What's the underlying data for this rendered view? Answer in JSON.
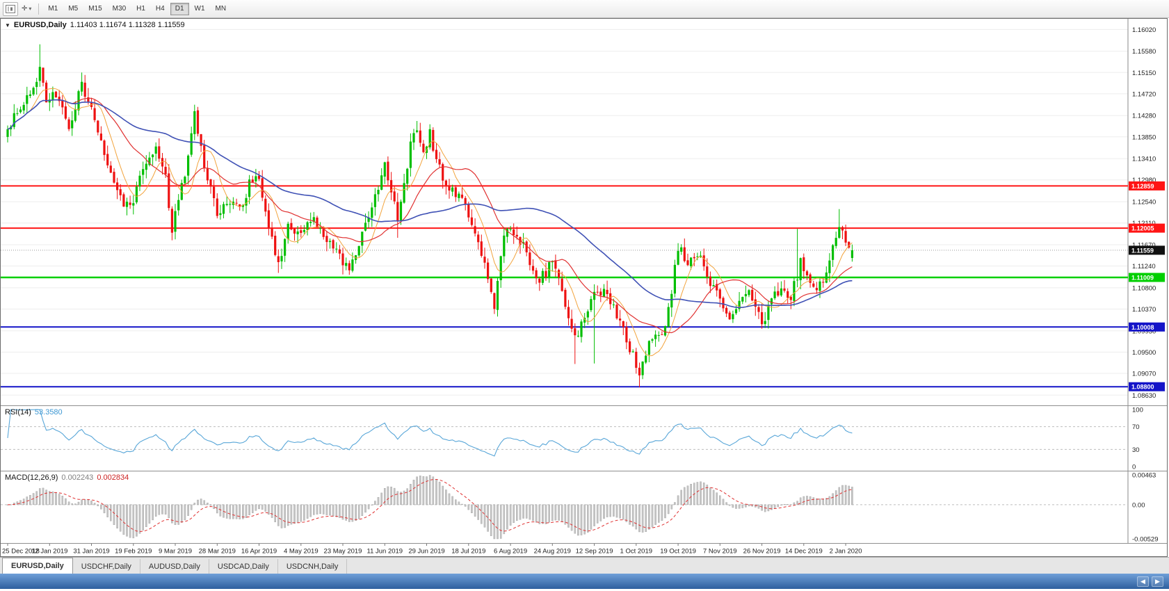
{
  "toolbar": {
    "timeframes": [
      "M1",
      "M5",
      "M15",
      "M30",
      "H1",
      "H4",
      "D1",
      "W1",
      "MN"
    ],
    "active_timeframe": "D1"
  },
  "chart_header": {
    "marker": "▼",
    "symbol": "EURUSD,Daily",
    "ohlc_text": "1.11403 1.11674 1.11328 1.11559"
  },
  "main_chart": {
    "y_ticks": [
      "1.16020",
      "1.15580",
      "1.15150",
      "1.14720",
      "1.14280",
      "1.13850",
      "1.13410",
      "1.12980",
      "1.12540",
      "1.12110",
      "1.11670",
      "1.11240",
      "1.10800",
      "1.10370",
      "1.09930",
      "1.09500",
      "1.09070",
      "1.08630"
    ],
    "hlines": [
      {
        "price": 1.12859,
        "label": "1.12859",
        "color": "#ff1414",
        "width": 2
      },
      {
        "price": 1.12005,
        "label": "1.12005",
        "color": "#ff1414",
        "width": 2
      },
      {
        "price": 1.11009,
        "label": "1.11009",
        "color": "#00cf00",
        "width": 2.5
      },
      {
        "price": 1.10008,
        "label": "1.10008",
        "color": "#1414c8",
        "width": 2
      },
      {
        "price": 1.088,
        "label": "1.08800",
        "color": "#1414c8",
        "width": 2
      }
    ],
    "current_price": {
      "price": 1.11559,
      "label": "1.11559",
      "bg": "#101010"
    },
    "grid_color": "#ededed",
    "axis_divider_color": "#8a8a8a"
  },
  "rsi_panel": {
    "title": "RSI(14)",
    "value": "53.3580",
    "y_ticks": [
      "100",
      "70",
      "30",
      "0"
    ]
  },
  "macd_panel": {
    "title": "MACD(12,26,9)",
    "macd_value": "0.002243",
    "signal_value": "0.002834",
    "y_ticks": [
      "0.00463",
      "0.00",
      "-0.00529"
    ]
  },
  "x_axis": {
    "labels": [
      "25 Dec 2018",
      "12 Jan 2019",
      "31 Jan 2019",
      "19 Feb 2019",
      "9 Mar 2019",
      "28 Mar 2019",
      "16 Apr 2019",
      "4 May 2019",
      "23 May 2019",
      "11 Jun 2019",
      "29 Jun 2019",
      "18 Jul 2019",
      "6 Aug 2019",
      "24 Aug 2019",
      "12 Sep 2019",
      "1 Oct 2019",
      "19 Oct 2019",
      "7 Nov 2019",
      "26 Nov 2019",
      "14 Dec 2019",
      "2 Jan 2020"
    ],
    "bars_per_label": 13
  },
  "bottom_tabs": {
    "tabs": [
      {
        "label": "EURUSD,Daily",
        "active": true
      },
      {
        "label": "USDCHF,Daily",
        "active": false
      },
      {
        "label": "AUDUSD,Daily",
        "active": false
      },
      {
        "label": "USDCAD,Daily",
        "active": false
      },
      {
        "label": "USDCNH,Daily",
        "active": false
      }
    ]
  },
  "nav": {
    "left": "◀",
    "right": "▶"
  },
  "chart_data": {
    "type": "candlestick",
    "symbol": "EURUSD",
    "timeframe": "Daily",
    "bar_count": 263,
    "seed": 20,
    "up_color": "#00be00",
    "down_color": "#ee1111",
    "price_range": [
      1.0848,
      1.1618
    ],
    "last_bar": {
      "open": 1.11403,
      "high": 1.11674,
      "low": 1.11328,
      "close": 1.11559
    },
    "anchors": [
      [
        0,
        1.1395
      ],
      [
        3,
        1.144
      ],
      [
        6,
        1.146
      ],
      [
        10,
        1.152
      ],
      [
        12,
        1.1455
      ],
      [
        15,
        1.147
      ],
      [
        19,
        1.14
      ],
      [
        23,
        1.149
      ],
      [
        26,
        1.144
      ],
      [
        30,
        1.135
      ],
      [
        33,
        1.13
      ],
      [
        36,
        1.125
      ],
      [
        39,
        1.126
      ],
      [
        42,
        1.132
      ],
      [
        46,
        1.136
      ],
      [
        49,
        1.13
      ],
      [
        51,
        1.12
      ],
      [
        55,
        1.131
      ],
      [
        58,
        1.143
      ],
      [
        61,
        1.133
      ],
      [
        65,
        1.1225
      ],
      [
        69,
        1.126
      ],
      [
        72,
        1.1235
      ],
      [
        75,
        1.129
      ],
      [
        78,
        1.13
      ],
      [
        82,
        1.118
      ],
      [
        84,
        1.113
      ],
      [
        87,
        1.12
      ],
      [
        91,
        1.12
      ],
      [
        95,
        1.122
      ],
      [
        98,
        1.118
      ],
      [
        101,
        1.116
      ],
      [
        104,
        1.113
      ],
      [
        106,
        1.112
      ],
      [
        109,
        1.117
      ],
      [
        112,
        1.122
      ],
      [
        115,
        1.128
      ],
      [
        117,
        1.133
      ],
      [
        121,
        1.1215
      ],
      [
        125,
        1.137
      ],
      [
        127,
        1.14
      ],
      [
        129,
        1.136
      ],
      [
        131,
        1.139
      ],
      [
        134,
        1.132
      ],
      [
        137,
        1.128
      ],
      [
        140,
        1.127
      ],
      [
        143,
        1.1225
      ],
      [
        146,
        1.117
      ],
      [
        148,
        1.112
      ],
      [
        151,
        1.1045
      ],
      [
        153,
        1.115
      ],
      [
        155,
        1.12
      ],
      [
        158,
        1.1185
      ],
      [
        161,
        1.115
      ],
      [
        164,
        1.109
      ],
      [
        167,
        1.111
      ],
      [
        169,
        1.114
      ],
      [
        171,
        1.11
      ],
      [
        173,
        1.104
      ],
      [
        175,
        1.099
      ],
      [
        177,
        1.0975
      ],
      [
        179,
        1.103
      ],
      [
        182,
        1.1065
      ],
      [
        185,
        1.107
      ],
      [
        188,
        1.104
      ],
      [
        191,
        1.1
      ],
      [
        193,
        1.096
      ],
      [
        196,
        1.0905
      ],
      [
        199,
        1.0965
      ],
      [
        202,
        1.098
      ],
      [
        204,
        1.1
      ],
      [
        206,
        1.107
      ],
      [
        208,
        1.1165
      ],
      [
        211,
        1.113
      ],
      [
        214,
        1.115
      ],
      [
        218,
        1.109
      ],
      [
        221,
        1.1055
      ],
      [
        224,
        1.1015
      ],
      [
        227,
        1.106
      ],
      [
        230,
        1.1075
      ],
      [
        234,
        1.1005
      ],
      [
        237,
        1.106
      ],
      [
        240,
        1.108
      ],
      [
        243,
        1.106
      ],
      [
        246,
        1.113
      ],
      [
        248,
        1.1115
      ],
      [
        250,
        1.108
      ],
      [
        252,
        1.109
      ],
      [
        254,
        1.111
      ],
      [
        256,
        1.117
      ],
      [
        258,
        1.121
      ],
      [
        260,
        1.117
      ],
      [
        262,
        1.11559
      ]
    ],
    "spikes": [
      {
        "i": 10,
        "high": 1.1572
      },
      {
        "i": 23,
        "high": 1.1515
      },
      {
        "i": 51,
        "low": 1.1176
      },
      {
        "i": 58,
        "high": 1.145
      },
      {
        "i": 84,
        "low": 1.111
      },
      {
        "i": 104,
        "low": 1.1107
      },
      {
        "i": 121,
        "low": 1.1181
      },
      {
        "i": 127,
        "high": 1.1412
      },
      {
        "i": 151,
        "low": 1.1027
      },
      {
        "i": 176,
        "low": 1.0926
      },
      {
        "i": 182,
        "low": 1.0927,
        "high": 1.1087
      },
      {
        "i": 196,
        "low": 1.0879
      },
      {
        "i": 245,
        "high": 1.1199
      },
      {
        "i": 258,
        "high": 1.1239
      }
    ],
    "moving_averages": [
      {
        "period": 8,
        "color": "#f2a33c",
        "width": 1
      },
      {
        "period": 21,
        "color": "#e03131",
        "width": 1.2
      },
      {
        "period": 55,
        "color": "#3f51b5",
        "width": 1.6
      }
    ],
    "rsi": {
      "period": 14,
      "levels": [
        70,
        30
      ],
      "color": "#58a6d8",
      "range": [
        0,
        100
      ]
    },
    "macd": {
      "fast": 12,
      "slow": 26,
      "signal_period": 9,
      "range": [
        -0.00529,
        0.00463
      ],
      "histogram_color": "#c6c6c6",
      "histogram_stroke": "#9e9e9e",
      "signal_color": "#e03131"
    }
  }
}
